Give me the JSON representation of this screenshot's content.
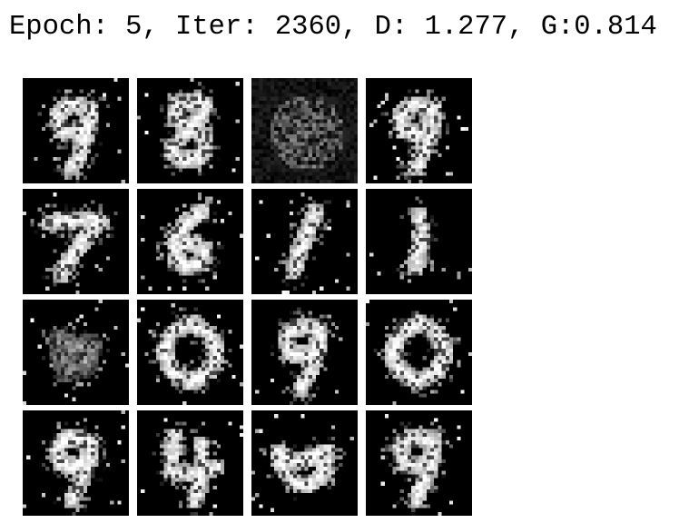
{
  "header": {
    "status_text": "Epoch: 5, Iter: 2360, D: 1.277, G:0.814"
  },
  "colors": {
    "background": "#ffffff",
    "tile_background": "#000000",
    "pixel": "#ffffff"
  },
  "grid": {
    "rows": 4,
    "columns": 4,
    "samples": [
      {
        "digit_shape": "9"
      },
      {
        "digit_shape": "8"
      },
      {
        "digit_shape": "noise"
      },
      {
        "digit_shape": "9"
      },
      {
        "digit_shape": "7"
      },
      {
        "digit_shape": "6"
      },
      {
        "digit_shape": "1"
      },
      {
        "digit_shape": "i"
      },
      {
        "digit_shape": "faint"
      },
      {
        "digit_shape": "0"
      },
      {
        "digit_shape": "9"
      },
      {
        "digit_shape": "0"
      },
      {
        "digit_shape": "9"
      },
      {
        "digit_shape": "4"
      },
      {
        "digit_shape": "blob"
      },
      {
        "digit_shape": "9"
      }
    ]
  }
}
